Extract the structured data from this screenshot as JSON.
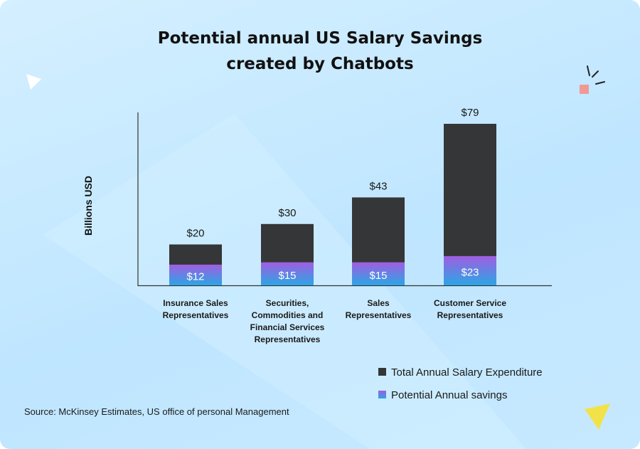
{
  "chart_data": {
    "type": "bar",
    "title_lines": [
      "Potential annual US Salary Savings",
      "created by Chatbots"
    ],
    "ylabel": "Billions USD",
    "xlabel": "",
    "categories": [
      [
        "Insurance Sales",
        "Representatives"
      ],
      [
        "Securities,",
        "Commodities and",
        "Financial Services",
        "Representatives"
      ],
      [
        "Sales",
        "Representatives"
      ],
      [
        "Customer Service",
        "Representatives"
      ]
    ],
    "series": [
      {
        "name": "Total Annual Salary Expenditure",
        "values": [
          20,
          30,
          43,
          79
        ],
        "labels": [
          "$20",
          "$30",
          "$43",
          "$79"
        ],
        "color": "#353638"
      },
      {
        "name": "Potential Annual savings",
        "values": [
          12,
          15,
          15,
          23
        ],
        "labels": [
          "$12",
          "$15",
          "$15",
          "$23"
        ],
        "color_top": "#a05ee0",
        "color_bottom": "#2aa6e6"
      }
    ],
    "ylim": [
      0,
      90
    ],
    "grid": false,
    "legend_position": "bottom-right"
  },
  "source": "Source: McKinsey Estimates, US office of personal Management",
  "colors": {
    "background": "#c7e9ff",
    "total_bar": "#353638",
    "savings_top": "#a05ee0",
    "savings_bottom": "#2aa6e6",
    "decor_triangle_yellow": "#f2e24a",
    "decor_square_pink": "#ef9a95"
  }
}
